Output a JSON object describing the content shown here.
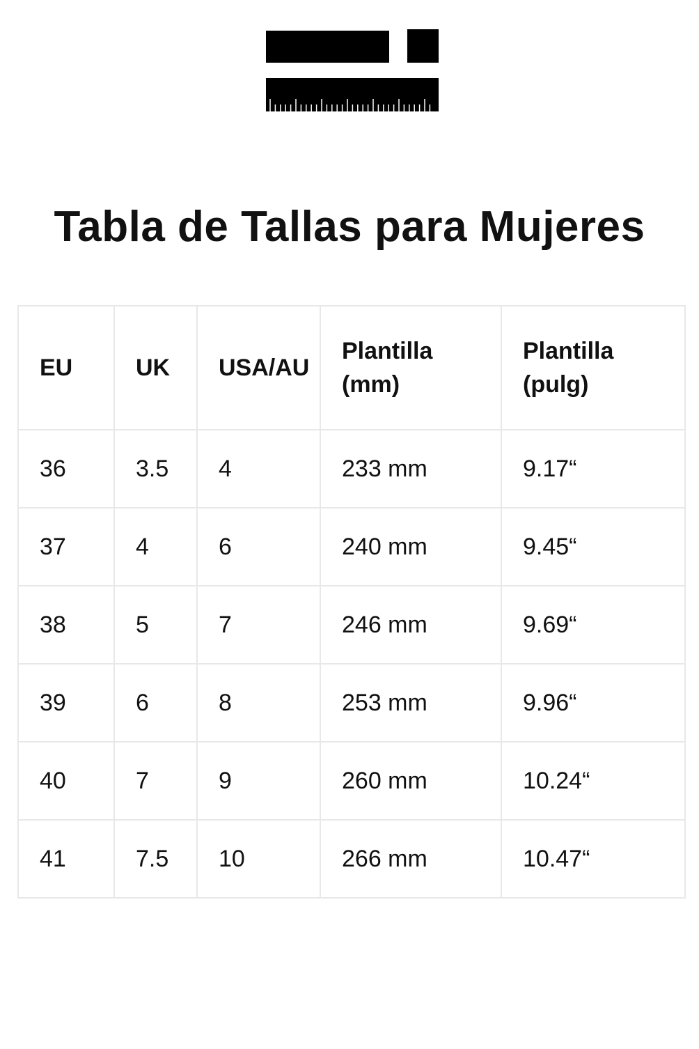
{
  "header": {
    "title": "Tabla de Tallas para Mujeres"
  },
  "table": {
    "columns": [
      "EU",
      "UK",
      "USA/AU",
      "Plantilla (mm)",
      "Plantilla (pulg)"
    ],
    "rows": [
      [
        "36",
        "3.5",
        "4",
        "233 mm",
        "9.17“"
      ],
      [
        "37",
        "4",
        "6",
        "240 mm",
        "9.45“"
      ],
      [
        "38",
        "5",
        "7",
        "246 mm",
        "9.69“"
      ],
      [
        "39",
        "6",
        "8",
        "253 mm",
        "9.96“"
      ],
      [
        "40",
        "7",
        "9",
        "260 mm",
        "10.24“"
      ],
      [
        "41",
        "7.5",
        "10",
        "266 mm",
        "10.47“"
      ]
    ]
  }
}
